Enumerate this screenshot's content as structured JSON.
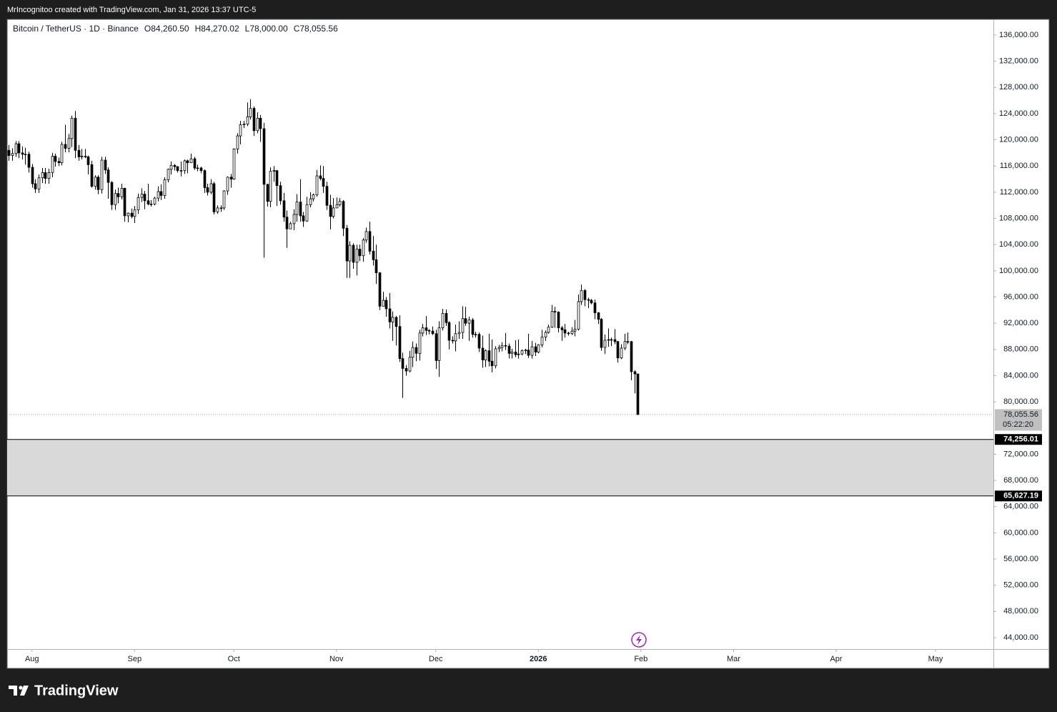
{
  "header": "MrIncognitoo created with TradingView.com, Jan 31, 2026 13:37 UTC-5",
  "footer": "TradingView",
  "chart_data": {
    "type": "candlestick",
    "title": "Bitcoin / TetherUS · 1D · Binance",
    "ohlc_labels": [
      "O84,260.50",
      "H84,270.02",
      "L78,000.00",
      "C78,055.56"
    ],
    "up_color": "#ffffff",
    "down_color": "#000000",
    "outline_color": "#000000",
    "xlim": [
      -0.5,
      297.5
    ],
    "xticks": [
      {
        "value": 7,
        "label": "Aug"
      },
      {
        "value": 38,
        "label": "Sep"
      },
      {
        "value": 68,
        "label": "Oct"
      },
      {
        "value": 99,
        "label": "Nov"
      },
      {
        "value": 129,
        "label": "Dec"
      },
      {
        "value": 160,
        "label": "2026"
      },
      {
        "value": 191,
        "label": "Feb"
      },
      {
        "value": 219,
        "label": "Mar"
      },
      {
        "value": 250,
        "label": "Apr"
      },
      {
        "value": 280,
        "label": "May"
      }
    ],
    "ylim": [
      42250,
      138400
    ],
    "yticks": [
      {
        "value": 136000,
        "label": "136,000.00"
      },
      {
        "value": 132000,
        "label": "132,000.00"
      },
      {
        "value": 128000,
        "label": "128,000.00"
      },
      {
        "value": 124000,
        "label": "124,000.00"
      },
      {
        "value": 120000,
        "label": "120,000.00"
      },
      {
        "value": 116000,
        "label": "116,000.00"
      },
      {
        "value": 112000,
        "label": "112,000.00"
      },
      {
        "value": 108000,
        "label": "108,000.00"
      },
      {
        "value": 104000,
        "label": "104,000.00"
      },
      {
        "value": 100000,
        "label": "100,000.00"
      },
      {
        "value": 96000,
        "label": "96,000.00"
      },
      {
        "value": 92000,
        "label": "92,000.00"
      },
      {
        "value": 88000,
        "label": "88,000.00"
      },
      {
        "value": 84000,
        "label": "84,000.00"
      },
      {
        "value": 80000,
        "label": "80,000.00"
      },
      {
        "value": 72000,
        "label": "72,000.00"
      },
      {
        "value": 68000,
        "label": "68,000.00"
      },
      {
        "value": 64000,
        "label": "64,000.00"
      },
      {
        "value": 60000,
        "label": "60,000.00"
      },
      {
        "value": 56000,
        "label": "56,000.00"
      },
      {
        "value": 52000,
        "label": "52,000.00"
      },
      {
        "value": 48000,
        "label": "48,000.00"
      },
      {
        "value": 44000,
        "label": "44,000.00"
      }
    ],
    "grid": false,
    "zone": {
      "values": [
        74256.01,
        65627.19
      ],
      "value_labels": [
        "74,256.01",
        "65,627.19"
      ],
      "color": "#d9d9d9"
    },
    "last_price": {
      "value": 78055.56,
      "value_label": "78,055.56",
      "countdown": "05:22:20",
      "color": "#c0c0c0"
    },
    "open": [
      118400,
      117600,
      117900,
      119400,
      118000,
      117800,
      117800,
      115800,
      113300,
      112500,
      114200,
      115000,
      114100,
      115000,
      117500,
      116700,
      116500,
      119300,
      118700,
      120200,
      123300,
      118400,
      117400,
      117500,
      117400,
      116200,
      112900,
      114300,
      112400,
      116900,
      115400,
      113500,
      110100,
      111800,
      111300,
      112600,
      108400,
      108800,
      108300,
      109300,
      111200,
      111700,
      110700,
      110200,
      110200,
      111100,
      112100,
      111500,
      113900,
      115500,
      116100,
      115900,
      115300,
      115300,
      116800,
      116500,
      117100,
      115700,
      115700,
      115300,
      112700,
      112000,
      113300,
      109000,
      109600,
      109600,
      112200,
      114300,
      114000,
      118600,
      120600,
      122300,
      122400,
      123500,
      124800,
      121400,
      123300,
      121700,
      113200,
      110600,
      115200,
      115300,
      113000,
      110700,
      108200,
      106400,
      107200,
      108600,
      110500,
      108400,
      107600,
      110100,
      111000,
      111600,
      114500,
      114100,
      112900,
      110000,
      108300,
      109600,
      110100,
      110600,
      106500,
      101500,
      103900,
      101300,
      103300,
      102300,
      104700,
      106000,
      103000,
      101700,
      99700,
      94600,
      95500,
      94200,
      92200,
      92900,
      91500,
      86600,
      85100,
      84700,
      86800,
      88300,
      87400,
      90500,
      91300,
      90900,
      90800,
      90400,
      86300,
      91300,
      93500,
      92100,
      89400,
      89300,
      90400,
      90600,
      92700,
      92000,
      92500,
      90300,
      90300,
      88200,
      86400,
      87800,
      86200,
      85500,
      88100,
      88300,
      88600,
      88500,
      87400,
      87600,
      87200,
      87300,
      87800,
      87900,
      87100,
      88400,
      87600,
      88700,
      89900,
      90600,
      91400,
      93800,
      93700,
      91300,
      91000,
      90500,
      90400,
      90800,
      91100,
      95300,
      97000,
      95600,
      95500,
      95100,
      93600,
      92600,
      88300,
      89400,
      89500,
      89500,
      89200,
      86700,
      88200,
      89200,
      89200,
      84600,
      84260.5
    ],
    "high": [
      119200,
      118700,
      119800,
      119800,
      119000,
      118800,
      118200,
      116300,
      114000,
      114700,
      115700,
      115700,
      115600,
      118000,
      117900,
      117300,
      119700,
      122300,
      120900,
      123700,
      124400,
      119200,
      118600,
      118600,
      117600,
      116800,
      114600,
      114600,
      117400,
      117400,
      115800,
      113700,
      112400,
      112700,
      113300,
      112700,
      108900,
      109500,
      109900,
      111800,
      112600,
      112200,
      113300,
      110800,
      111300,
      112900,
      113200,
      114300,
      115600,
      116700,
      116300,
      116000,
      116700,
      117000,
      117000,
      117900,
      117400,
      116200,
      115900,
      115500,
      113300,
      114000,
      113600,
      110000,
      110000,
      112300,
      114400,
      114800,
      118700,
      121000,
      122900,
      122900,
      125700,
      126200,
      125100,
      124200,
      123800,
      122600,
      113300,
      115800,
      116000,
      115400,
      113600,
      111900,
      109200,
      107500,
      109400,
      111700,
      114000,
      109000,
      111300,
      112000,
      111800,
      115400,
      116100,
      116000,
      113600,
      111600,
      111100,
      111200,
      111100,
      110800,
      107000,
      104500,
      104200,
      104000,
      104000,
      105000,
      106600,
      107500,
      105300,
      104000,
      99800,
      96800,
      96000,
      96600,
      93800,
      93100,
      93200,
      87500,
      85600,
      87800,
      89200,
      88900,
      91000,
      91900,
      93100,
      91100,
      91500,
      91000,
      92300,
      94200,
      94100,
      92300,
      90000,
      91800,
      92300,
      94600,
      94500,
      93000,
      92800,
      90700,
      90600,
      90100,
      88000,
      90400,
      89500,
      88500,
      88700,
      89100,
      90500,
      88900,
      88100,
      89400,
      89500,
      88000,
      88100,
      90400,
      89300,
      89000,
      88800,
      91000,
      90900,
      91800,
      94800,
      94500,
      93800,
      91600,
      91900,
      90700,
      91400,
      92500,
      96400,
      97900,
      97200,
      95900,
      95700,
      95600,
      93700,
      92800,
      90300,
      91200,
      89800,
      91100,
      89300,
      88800,
      90400,
      90600,
      89300,
      84800,
      84270.02
    ],
    "low": [
      116800,
      116800,
      117400,
      117200,
      117000,
      116200,
      115000,
      112700,
      111900,
      111900,
      113400,
      113300,
      113300,
      114300,
      115900,
      116000,
      116100,
      118100,
      118100,
      118900,
      117200,
      116800,
      117000,
      117200,
      114700,
      112700,
      112400,
      111700,
      111800,
      114800,
      111000,
      109300,
      109300,
      110300,
      110900,
      107500,
      107400,
      108000,
      107300,
      108700,
      110500,
      109400,
      110000,
      109800,
      110000,
      110600,
      110800,
      111000,
      113500,
      114700,
      115300,
      115000,
      114400,
      114800,
      114900,
      116500,
      115400,
      115200,
      114900,
      111900,
      111500,
      111700,
      108600,
      108700,
      109000,
      109300,
      111600,
      112700,
      113900,
      117900,
      119300,
      121800,
      122100,
      123100,
      120600,
      121000,
      119700,
      102000,
      109800,
      109700,
      113600,
      109900,
      110100,
      107500,
      103500,
      106400,
      106200,
      107500,
      107500,
      106700,
      107500,
      109700,
      110600,
      111300,
      113800,
      111900,
      109300,
      106300,
      108000,
      109600,
      109800,
      105300,
      98900,
      98900,
      100300,
      99300,
      101500,
      101400,
      104300,
      102500,
      100800,
      98000,
      94000,
      94600,
      93000,
      91200,
      89300,
      88600,
      86100,
      80600,
      84000,
      84500,
      85300,
      86200,
      86300,
      90000,
      90200,
      90300,
      90200,
      85000,
      83800,
      90900,
      91600,
      88000,
      88900,
      87700,
      89600,
      89600,
      91600,
      89300,
      89800,
      89800,
      87600,
      85200,
      85300,
      85400,
      84500,
      85100,
      87600,
      87700,
      87900,
      86600,
      86600,
      86800,
      86600,
      87100,
      87300,
      86700,
      86600,
      87000,
      87400,
      88300,
      89300,
      90400,
      91300,
      91300,
      90600,
      89300,
      89800,
      90100,
      90200,
      90000,
      90900,
      94800,
      94600,
      94300,
      94900,
      92600,
      91900,
      87800,
      87300,
      88400,
      88500,
      88800,
      86000,
      86500,
      87900,
      88800,
      83300,
      81300,
      78000
    ],
    "close": [
      117600,
      117900,
      119400,
      118000,
      117800,
      117800,
      115800,
      113300,
      112500,
      114200,
      115000,
      114100,
      115000,
      117500,
      116700,
      116500,
      119300,
      118700,
      120200,
      123300,
      118400,
      117400,
      117500,
      117400,
      116200,
      112900,
      114300,
      112400,
      116900,
      115400,
      113500,
      110100,
      111800,
      111300,
      112600,
      108400,
      108800,
      108300,
      109300,
      111200,
      111700,
      110700,
      110200,
      110200,
      111100,
      112100,
      111500,
      113900,
      115500,
      116100,
      115900,
      115300,
      115300,
      116800,
      116500,
      117100,
      115700,
      115700,
      115300,
      112700,
      112000,
      113300,
      109000,
      109600,
      109600,
      112200,
      114300,
      114000,
      118600,
      120600,
      122300,
      122400,
      123500,
      124800,
      121400,
      123300,
      121700,
      113200,
      110600,
      115200,
      115300,
      113000,
      110700,
      108200,
      106400,
      107200,
      108600,
      110500,
      108400,
      107600,
      110100,
      111000,
      111600,
      114500,
      114100,
      112900,
      110000,
      108300,
      109600,
      110100,
      110600,
      106500,
      101500,
      103900,
      101300,
      103300,
      102300,
      104700,
      106000,
      103000,
      101700,
      99700,
      94600,
      95500,
      94200,
      92200,
      92900,
      91500,
      86600,
      85100,
      84700,
      86800,
      88300,
      87400,
      90500,
      91300,
      90900,
      90800,
      90400,
      86300,
      91300,
      93500,
      92100,
      89400,
      89300,
      90400,
      90600,
      92700,
      92000,
      92500,
      90300,
      90300,
      88200,
      86400,
      87800,
      86200,
      85500,
      88100,
      88300,
      88600,
      88500,
      87400,
      87600,
      87200,
      87300,
      87800,
      87900,
      87100,
      88400,
      87600,
      88700,
      89900,
      90600,
      91400,
      93800,
      93700,
      91300,
      91000,
      90500,
      90400,
      90800,
      91100,
      95300,
      97000,
      95600,
      95500,
      95100,
      93600,
      92600,
      88300,
      89400,
      89500,
      89500,
      89200,
      86700,
      88200,
      89200,
      89200,
      84600,
      84260.5,
      78055.56
    ]
  }
}
